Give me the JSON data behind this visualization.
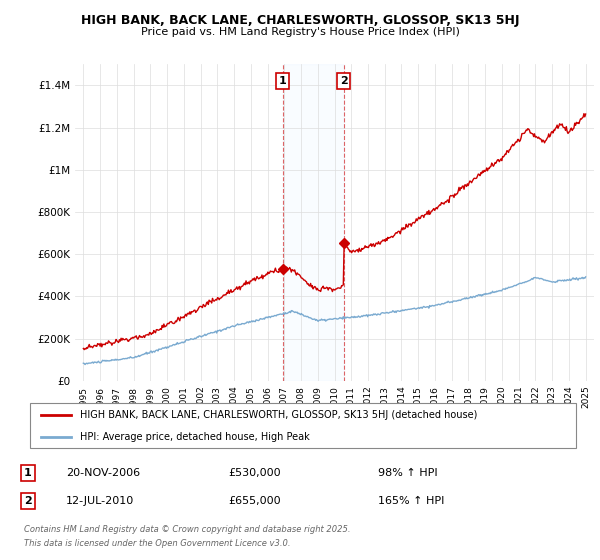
{
  "title_line1": "HIGH BANK, BACK LANE, CHARLESWORTH, GLOSSOP, SK13 5HJ",
  "title_line2": "Price paid vs. HM Land Registry's House Price Index (HPI)",
  "legend_line1": "HIGH BANK, BACK LANE, CHARLESWORTH, GLOSSOP, SK13 5HJ (detached house)",
  "legend_line2": "HPI: Average price, detached house, High Peak",
  "annotation1_label": "1",
  "annotation1_date": "20-NOV-2006",
  "annotation1_price": "£530,000",
  "annotation1_hpi": "98% ↑ HPI",
  "annotation1_year": 2006.9,
  "annotation1_value": 530000,
  "annotation2_label": "2",
  "annotation2_date": "12-JUL-2010",
  "annotation2_price": "£655,000",
  "annotation2_hpi": "165% ↑ HPI",
  "annotation2_year": 2010.55,
  "annotation2_value": 655000,
  "property_color": "#cc0000",
  "hpi_color": "#7aaad0",
  "ylim_min": 0,
  "ylim_max": 1500000,
  "footer_line1": "Contains HM Land Registry data © Crown copyright and database right 2025.",
  "footer_line2": "This data is licensed under the Open Government Licence v3.0."
}
